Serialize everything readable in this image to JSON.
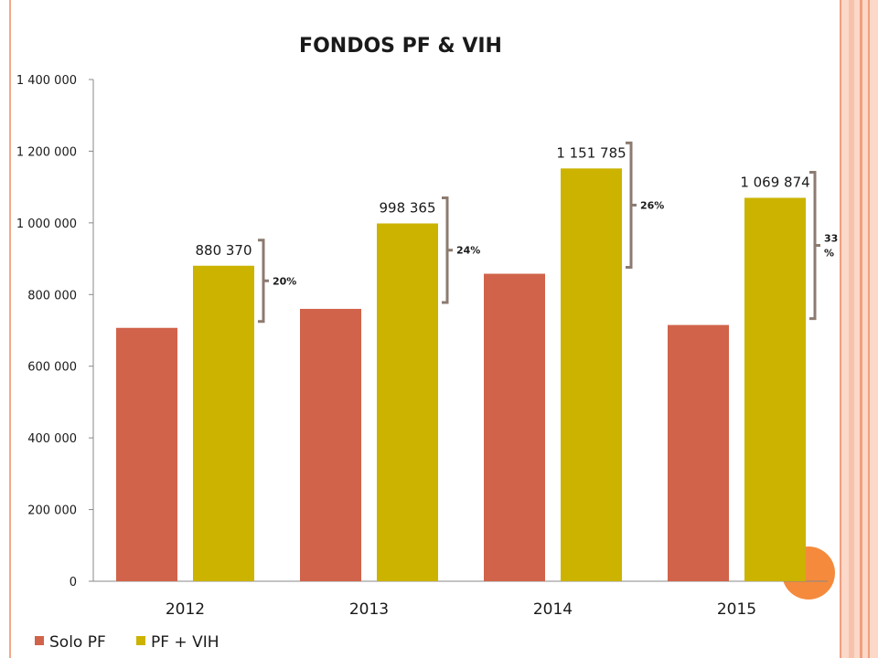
{
  "chart_data": {
    "type": "bar",
    "title": "FONDOS PF & VIH",
    "xlabel": "",
    "ylabel": "",
    "categories": [
      "2012",
      "2013",
      "2014",
      "2015"
    ],
    "ylim": [
      0,
      1400000
    ],
    "yticks": [
      0,
      200000,
      400000,
      600000,
      800000,
      1000000,
      1200000,
      1400000
    ],
    "ytick_labels": [
      "0",
      "200 000",
      "400 000",
      "600 000",
      "800 000",
      "1 000 000",
      "1 200 000",
      "1 400 000"
    ],
    "grid": false,
    "legend_position": "bottom-left",
    "series": [
      {
        "name": "Solo PF",
        "color": "#d0634a",
        "values": [
          707000,
          760000,
          858000,
          715000
        ]
      },
      {
        "name": "PF + VIH",
        "color": "#cbb300",
        "values": [
          880370,
          998365,
          1151785,
          1069874
        ]
      }
    ],
    "data_labels": [
      "880 370",
      "998 365",
      "1 151 785",
      "1 069 874"
    ],
    "annotations": [
      {
        "category": "2012",
        "text_lines": [
          "20%"
        ]
      },
      {
        "category": "2013",
        "text_lines": [
          "24%"
        ]
      },
      {
        "category": "2014",
        "text_lines": [
          "26%"
        ]
      },
      {
        "category": "2015",
        "text_lines": [
          "33",
          "%"
        ]
      }
    ],
    "bracket_color": "#8c7b70"
  }
}
